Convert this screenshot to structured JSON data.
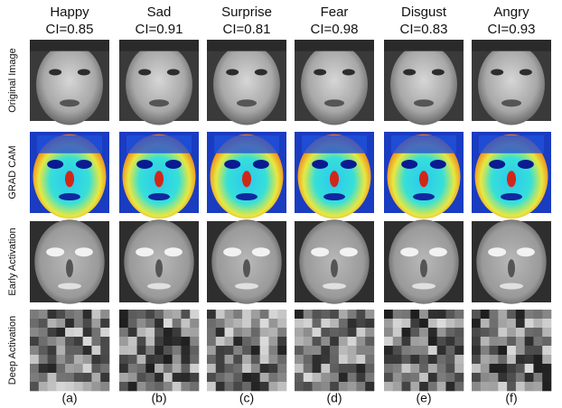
{
  "columns": [
    {
      "label": "Happy",
      "score": "CI=0.85",
      "tag": "(a)"
    },
    {
      "label": "Sad",
      "score": "CI=0.91",
      "tag": "(b)"
    },
    {
      "label": "Surprise",
      "score": "CI=0.81",
      "tag": "(c)"
    },
    {
      "label": "Fear",
      "score": "CI=0.98",
      "tag": "(d)"
    },
    {
      "label": "Disgust",
      "score": "CI=0.83",
      "tag": "(e)"
    },
    {
      "label": "Angry",
      "score": "CI=0.93",
      "tag": "(f)"
    }
  ],
  "rows": [
    "Original Image",
    "GRAD CAM",
    "Early Activation",
    "Deep Activation"
  ]
}
